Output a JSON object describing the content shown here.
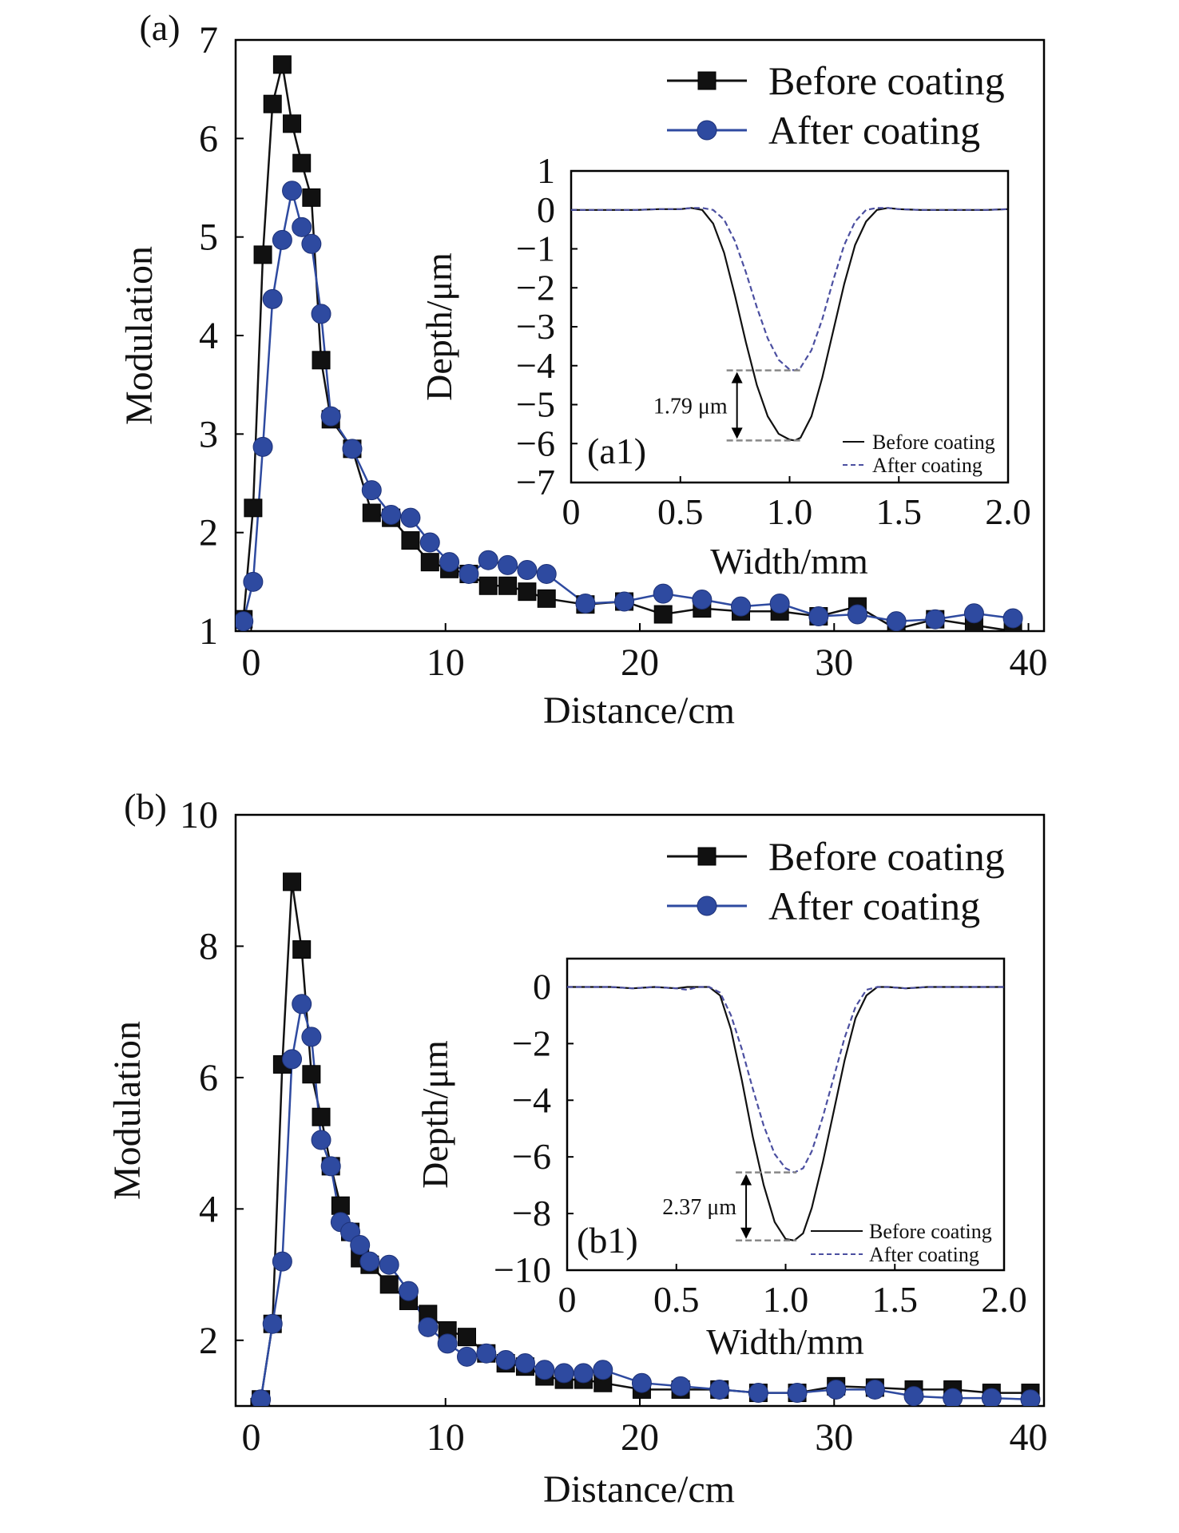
{
  "colors": {
    "before": "#111111",
    "after": "#2e4aa0",
    "inset_after": "#4b4fa0",
    "guide": "#888888"
  },
  "chart_data": [
    {
      "type": "line",
      "panel_label": "(a)",
      "xlabel": "Distance/cm",
      "ylabel": "Modulation",
      "xlim": [
        -0.8,
        40.8
      ],
      "ylim": [
        1,
        7
      ],
      "xticks": [
        "0",
        "10",
        "20",
        "30",
        "40"
      ],
      "yticks": [
        "1",
        "2",
        "3",
        "4",
        "5",
        "6",
        "7"
      ],
      "legend_position": "top-right",
      "series": [
        {
          "name": "Before coating",
          "marker": "square",
          "x": [
            -0.4,
            0.1,
            0.6,
            1.1,
            1.6,
            2.1,
            2.6,
            3.1,
            3.6,
            4.1,
            5.2,
            6.2,
            7.2,
            8.2,
            9.2,
            10.2,
            11.2,
            12.2,
            13.2,
            14.2,
            15.2,
            17.2,
            19.2,
            21.2,
            23.2,
            25.2,
            27.2,
            29.2,
            31.2,
            33.2,
            35.2,
            37.2,
            39.2
          ],
          "y": [
            1.12,
            2.25,
            4.82,
            6.35,
            6.75,
            6.15,
            5.75,
            5.4,
            3.75,
            3.15,
            2.85,
            2.2,
            2.15,
            1.92,
            1.7,
            1.63,
            1.58,
            1.46,
            1.46,
            1.4,
            1.33,
            1.27,
            1.3,
            1.17,
            1.23,
            1.2,
            1.2,
            1.15,
            1.25,
            1.02,
            1.12,
            1.06,
            1.0
          ]
        },
        {
          "name": "After coating",
          "marker": "circle",
          "x": [
            -0.4,
            0.1,
            0.6,
            1.1,
            1.6,
            2.1,
            2.6,
            3.1,
            3.6,
            4.1,
            5.2,
            6.2,
            7.2,
            8.2,
            9.2,
            10.2,
            11.2,
            12.2,
            13.2,
            14.2,
            15.2,
            17.2,
            19.2,
            21.2,
            23.2,
            25.2,
            27.2,
            29.2,
            31.2,
            33.2,
            35.2,
            37.2,
            39.2
          ],
          "y": [
            1.1,
            1.5,
            2.87,
            4.37,
            4.97,
            5.47,
            5.1,
            4.93,
            4.22,
            3.18,
            2.85,
            2.43,
            2.18,
            2.15,
            1.9,
            1.7,
            1.58,
            1.72,
            1.67,
            1.62,
            1.58,
            1.28,
            1.3,
            1.38,
            1.32,
            1.25,
            1.28,
            1.15,
            1.17,
            1.1,
            1.12,
            1.18,
            1.13
          ]
        }
      ],
      "inset": {
        "panel_label": "(a1)",
        "xlabel": "Width/mm",
        "ylabel": "Depth/μm",
        "xlim": [
          0,
          2.0
        ],
        "ylim": [
          -7,
          1
        ],
        "xticks": [
          "0",
          "0.5",
          "1.0",
          "1.5",
          "2.0"
        ],
        "yticks": [
          "1",
          "0",
          "−1",
          "−2",
          "−3",
          "−4",
          "−5",
          "−6",
          "−7"
        ],
        "legend_position": "bottom-right",
        "annotation": "1.79 μm",
        "series": [
          {
            "name": "Before coating",
            "style": "solid",
            "x": [
              0,
              0.1,
              0.2,
              0.3,
              0.4,
              0.5,
              0.55,
              0.6,
              0.65,
              0.7,
              0.75,
              0.8,
              0.85,
              0.9,
              0.95,
              1.0,
              1.025,
              1.05,
              1.1,
              1.15,
              1.2,
              1.25,
              1.3,
              1.35,
              1.4,
              1.45,
              1.5,
              1.6,
              1.7,
              1.8,
              1.9,
              2.0
            ],
            "y": [
              0,
              0,
              0,
              0,
              0.02,
              0.02,
              0.05,
              0,
              -0.35,
              -1.1,
              -2.2,
              -3.4,
              -4.5,
              -5.3,
              -5.75,
              -5.9,
              -5.92,
              -5.85,
              -5.3,
              -4.3,
              -3.1,
              -1.9,
              -0.9,
              -0.3,
              0,
              0.05,
              0.02,
              0,
              0,
              0,
              0,
              0.02
            ]
          },
          {
            "name": "After coating",
            "style": "dashed",
            "x": [
              0,
              0.1,
              0.2,
              0.3,
              0.4,
              0.5,
              0.55,
              0.6,
              0.65,
              0.7,
              0.75,
              0.8,
              0.85,
              0.9,
              0.95,
              1.0,
              1.025,
              1.05,
              1.1,
              1.15,
              1.2,
              1.25,
              1.3,
              1.35,
              1.4,
              1.45,
              1.5,
              1.6,
              1.7,
              1.8,
              1.9,
              2.0
            ],
            "y": [
              0,
              0,
              0,
              0,
              0.02,
              0.02,
              0.05,
              0.05,
              0,
              -0.25,
              -0.8,
              -1.6,
              -2.5,
              -3.3,
              -3.85,
              -4.1,
              -4.12,
              -4.05,
              -3.6,
              -2.8,
              -1.8,
              -0.9,
              -0.3,
              0,
              0.05,
              0.05,
              0.02,
              0,
              0,
              0,
              0,
              0.02
            ]
          }
        ]
      }
    },
    {
      "type": "line",
      "panel_label": "(b)",
      "xlabel": "Distance/cm",
      "ylabel": "Modulation",
      "xlim": [
        -0.8,
        40.8
      ],
      "ylim": [
        1,
        10
      ],
      "xticks": [
        "0",
        "10",
        "20",
        "30",
        "40"
      ],
      "yticks": [
        "2",
        "4",
        "6",
        "8",
        "10"
      ],
      "legend_position": "top-right",
      "series": [
        {
          "name": "Before coating",
          "marker": "square",
          "x": [
            0.5,
            1.1,
            1.6,
            2.1,
            2.6,
            3.1,
            3.6,
            4.1,
            4.6,
            5.1,
            5.6,
            6.1,
            7.1,
            8.1,
            9.1,
            10.1,
            11.1,
            12.1,
            13.1,
            14.1,
            15.1,
            16.1,
            17.1,
            18.1,
            20.1,
            22.1,
            24.1,
            26.1,
            28.1,
            30.1,
            32.1,
            34.1,
            36.1,
            38.1,
            40.1
          ],
          "y": [
            1.1,
            2.25,
            6.2,
            8.98,
            7.95,
            6.05,
            5.4,
            4.65,
            4.05,
            3.65,
            3.25,
            3.15,
            2.85,
            2.6,
            2.4,
            2.15,
            2.05,
            1.8,
            1.65,
            1.6,
            1.45,
            1.4,
            1.4,
            1.35,
            1.25,
            1.25,
            1.25,
            1.2,
            1.2,
            1.3,
            1.28,
            1.25,
            1.25,
            1.2,
            1.2
          ]
        },
        {
          "name": "After coating",
          "marker": "circle",
          "x": [
            0.5,
            1.1,
            1.6,
            2.1,
            2.6,
            3.1,
            3.6,
            4.1,
            4.6,
            5.1,
            5.6,
            6.1,
            7.1,
            8.1,
            9.1,
            10.1,
            11.1,
            12.1,
            13.1,
            14.1,
            15.1,
            16.1,
            17.1,
            18.1,
            20.1,
            22.1,
            24.1,
            26.1,
            28.1,
            30.1,
            32.1,
            34.1,
            36.1,
            38.1,
            40.1
          ],
          "y": [
            1.1,
            2.25,
            3.2,
            6.28,
            7.12,
            6.62,
            5.05,
            4.65,
            3.8,
            3.65,
            3.45,
            3.2,
            3.15,
            2.75,
            2.2,
            1.95,
            1.75,
            1.8,
            1.7,
            1.65,
            1.55,
            1.5,
            1.5,
            1.55,
            1.35,
            1.3,
            1.25,
            1.2,
            1.2,
            1.25,
            1.25,
            1.15,
            1.12,
            1.12,
            1.1
          ]
        }
      ],
      "inset": {
        "panel_label": "(b1)",
        "xlabel": "Width/mm",
        "ylabel": "Depth/μm",
        "xlim": [
          0,
          2.0
        ],
        "ylim": [
          -10,
          1
        ],
        "xticks": [
          "0",
          "0.5",
          "1.0",
          "1.5",
          "2.0"
        ],
        "yticks": [
          "0",
          "−2",
          "−4",
          "−6",
          "−8",
          "−10"
        ],
        "legend_position": "bottom-right",
        "annotation": "2.37 μm",
        "series": [
          {
            "name": "Before coating",
            "style": "solid",
            "x": [
              0,
              0.1,
              0.2,
              0.3,
              0.4,
              0.5,
              0.55,
              0.6,
              0.65,
              0.7,
              0.75,
              0.8,
              0.85,
              0.9,
              0.95,
              1.0,
              1.04,
              1.08,
              1.12,
              1.17,
              1.22,
              1.27,
              1.32,
              1.37,
              1.42,
              1.47,
              1.55,
              1.65,
              1.75,
              1.85,
              2.0
            ],
            "y": [
              0,
              0,
              0,
              -0.05,
              0,
              -0.05,
              0,
              0,
              0,
              -0.3,
              -1.5,
              -3.3,
              -5.3,
              -7.0,
              -8.3,
              -8.9,
              -8.95,
              -8.7,
              -7.8,
              -6.2,
              -4.4,
              -2.6,
              -1.1,
              -0.3,
              0,
              0,
              -0.05,
              0,
              0,
              0,
              0
            ]
          },
          {
            "name": "After coating",
            "style": "dashed",
            "x": [
              0,
              0.1,
              0.2,
              0.3,
              0.4,
              0.5,
              0.55,
              0.6,
              0.65,
              0.7,
              0.75,
              0.8,
              0.85,
              0.9,
              0.95,
              1.0,
              1.04,
              1.08,
              1.12,
              1.17,
              1.22,
              1.27,
              1.32,
              1.37,
              1.42,
              1.47,
              1.55,
              1.65,
              1.75,
              1.85,
              2.0
            ],
            "y": [
              0,
              0,
              0,
              -0.05,
              0,
              -0.05,
              -0.1,
              0,
              0,
              -0.2,
              -1.0,
              -2.2,
              -3.6,
              -4.9,
              -5.9,
              -6.4,
              -6.55,
              -6.4,
              -5.8,
              -4.6,
              -3.2,
              -1.8,
              -0.7,
              -0.1,
              0,
              0,
              -0.05,
              0,
              0,
              0,
              0
            ]
          }
        ]
      }
    }
  ]
}
